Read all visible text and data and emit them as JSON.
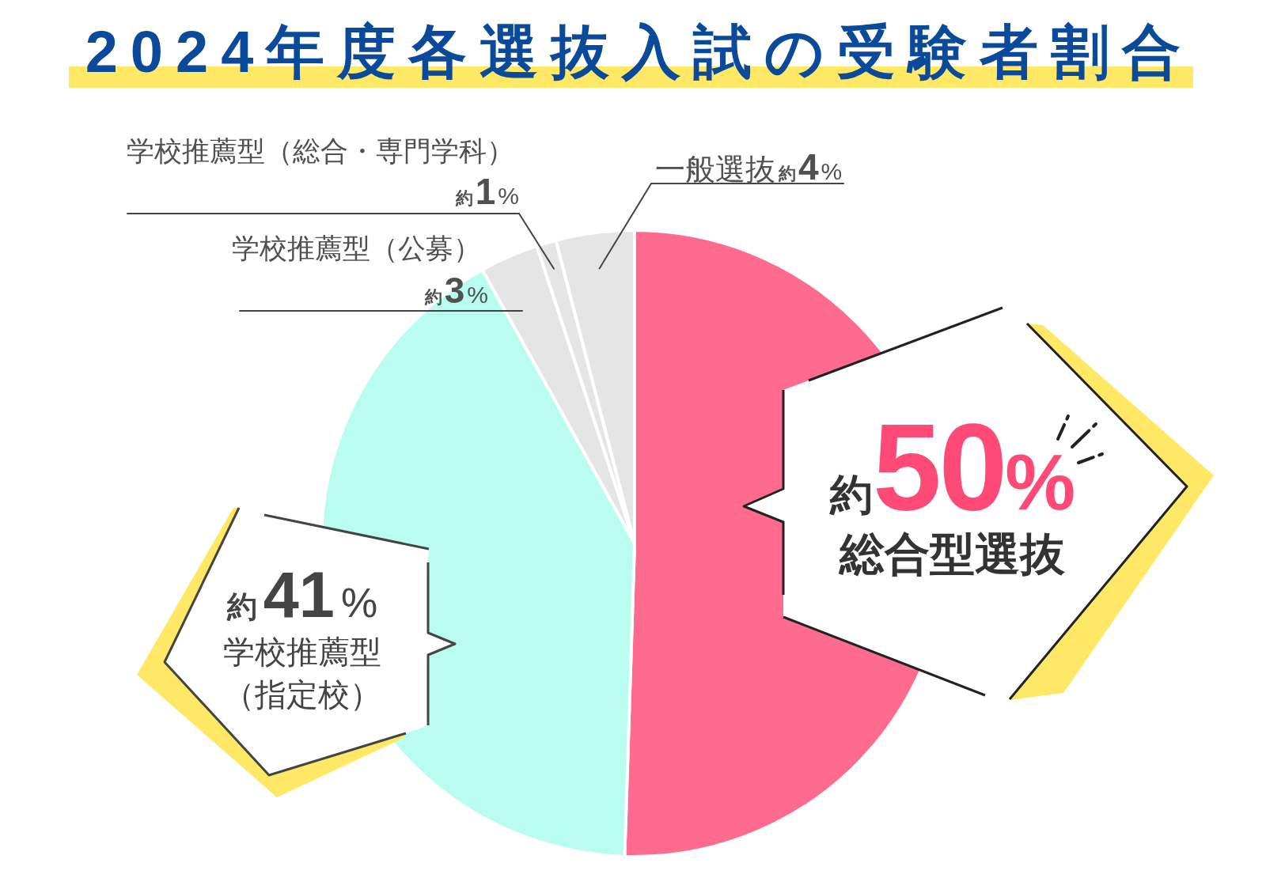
{
  "chart_data": {
    "type": "pie",
    "title": "2024年度各選抜入試の受験者割合",
    "categories": [
      "総合型選抜",
      "学校推薦型（指定校）",
      "学校推薦型（公募）",
      "学校推薦型（総合・専門学科）",
      "一般選抜"
    ],
    "values": [
      50,
      41,
      3,
      1,
      4
    ],
    "value_labels": [
      "約50%",
      "約41%",
      "約3%",
      "約1%",
      "約4%"
    ],
    "colors": [
      "#ff6b8f",
      "#b9fdf0",
      "#e5e5e5",
      "#e5e5e5",
      "#e5e5e5"
    ]
  }
}
